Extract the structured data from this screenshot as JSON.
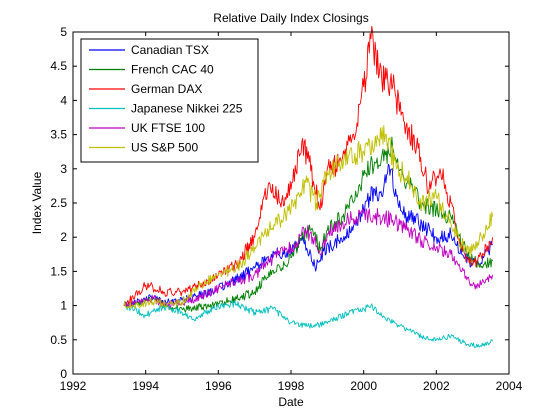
{
  "chart_data": {
    "type": "line",
    "title": "Relative Daily Index Closings",
    "xlabel": "Date",
    "ylabel": "Index Value",
    "xlim": [
      1992,
      2004
    ],
    "ylim": [
      0,
      5
    ],
    "xticks": [
      1992,
      1994,
      1996,
      1998,
      2000,
      2002,
      2004
    ],
    "yticks": [
      0,
      0.5,
      1,
      1.5,
      2,
      2.5,
      3,
      3.5,
      4,
      4.5,
      5
    ],
    "xtick_labels": [
      "1992",
      "1994",
      "1996",
      "1998",
      "2000",
      "2002",
      "2004"
    ],
    "ytick_labels": [
      "0",
      "0.5",
      "1",
      "1.5",
      "2",
      "2.5",
      "3",
      "3.5",
      "4",
      "4.5",
      "5"
    ],
    "grid": false,
    "legend_position": "top-left",
    "series": [
      {
        "name": "Canadian TSX",
        "color": "#0000ff",
        "x": [
          1993.4,
          1993.8,
          1994.2,
          1994.6,
          1995.0,
          1995.5,
          1996.0,
          1996.5,
          1997.0,
          1997.3,
          1997.6,
          1998.0,
          1998.3,
          1998.5,
          1998.7,
          1998.9,
          1999.3,
          1999.7,
          2000.0,
          2000.3,
          2000.5,
          2000.7,
          2000.9,
          2001.2,
          2001.6,
          2002.0,
          2002.4,
          2002.7,
          2003.0,
          2003.3,
          2003.55
        ],
        "y": [
          1.0,
          1.08,
          1.12,
          1.05,
          1.08,
          1.15,
          1.25,
          1.38,
          1.55,
          1.65,
          1.75,
          1.8,
          1.95,
          1.75,
          1.55,
          1.8,
          1.95,
          2.1,
          2.4,
          2.7,
          2.6,
          3.05,
          2.6,
          2.3,
          2.2,
          2.0,
          2.05,
          1.75,
          1.6,
          1.7,
          1.9
        ]
      },
      {
        "name": "French CAC 40",
        "color": "#008000",
        "x": [
          1993.4,
          1993.8,
          1994.2,
          1994.6,
          1995.0,
          1995.5,
          1996.0,
          1996.5,
          1997.0,
          1997.3,
          1997.6,
          1998.0,
          1998.3,
          1998.6,
          1998.8,
          1999.0,
          1999.4,
          1999.8,
          2000.0,
          2000.3,
          2000.6,
          2000.8,
          2001.2,
          2001.6,
          2002.0,
          2002.4,
          2002.7,
          2003.0,
          2003.3,
          2003.55
        ],
        "y": [
          1.0,
          1.05,
          1.1,
          0.98,
          0.95,
          0.98,
          1.02,
          1.1,
          1.2,
          1.4,
          1.5,
          1.7,
          2.0,
          2.1,
          1.8,
          2.1,
          2.3,
          2.6,
          2.9,
          3.1,
          3.2,
          3.3,
          2.8,
          2.5,
          2.4,
          2.3,
          1.9,
          1.65,
          1.6,
          1.65
        ]
      },
      {
        "name": "German DAX",
        "color": "#ff0000",
        "x": [
          1993.4,
          1993.8,
          1994.0,
          1994.5,
          1995.0,
          1995.5,
          1996.0,
          1996.5,
          1997.0,
          1997.2,
          1997.4,
          1997.7,
          1998.0,
          1998.3,
          1998.5,
          1998.8,
          1999.0,
          1999.4,
          1999.7,
          2000.0,
          2000.2,
          2000.5,
          2000.8,
          2001.1,
          2001.5,
          2001.8,
          2002.1,
          2002.4,
          2002.7,
          2003.0,
          2003.3,
          2003.55
        ],
        "y": [
          1.0,
          1.2,
          1.3,
          1.2,
          1.2,
          1.3,
          1.45,
          1.6,
          2.0,
          2.4,
          2.8,
          2.5,
          2.7,
          3.4,
          3.1,
          2.4,
          3.0,
          3.1,
          3.5,
          4.2,
          4.9,
          4.3,
          4.2,
          3.7,
          3.3,
          2.7,
          3.0,
          2.5,
          1.8,
          1.6,
          1.75,
          2.0
        ]
      },
      {
        "name": "Japanese Nikkei 225",
        "color": "#00bfbf",
        "x": [
          1993.4,
          1993.7,
          1994.0,
          1994.3,
          1994.6,
          1995.0,
          1995.3,
          1995.6,
          1996.0,
          1996.5,
          1997.0,
          1997.5,
          1998.0,
          1998.5,
          1998.8,
          1999.2,
          1999.6,
          2000.0,
          2000.2,
          2000.5,
          2000.8,
          2001.2,
          2001.6,
          2002.0,
          2002.4,
          2002.8,
          2003.2,
          2003.55
        ],
        "y": [
          1.0,
          0.95,
          0.85,
          0.95,
          0.98,
          0.9,
          0.8,
          0.88,
          1.0,
          1.02,
          0.9,
          0.95,
          0.75,
          0.7,
          0.72,
          0.8,
          0.9,
          0.95,
          1.0,
          0.85,
          0.75,
          0.65,
          0.55,
          0.5,
          0.55,
          0.45,
          0.4,
          0.48
        ]
      },
      {
        "name": "UK FTSE 100",
        "color": "#bf00bf",
        "x": [
          1993.4,
          1993.8,
          1994.2,
          1994.6,
          1995.0,
          1995.5,
          1996.0,
          1996.5,
          1997.0,
          1997.4,
          1997.8,
          1998.0,
          1998.4,
          1998.6,
          1998.8,
          1999.0,
          1999.4,
          1999.8,
          2000.0,
          2000.4,
          2000.8,
          2001.2,
          2001.6,
          2002.0,
          2002.4,
          2002.7,
          2003.0,
          2003.3,
          2003.55
        ],
        "y": [
          1.0,
          1.05,
          1.1,
          1.0,
          1.05,
          1.12,
          1.25,
          1.35,
          1.45,
          1.65,
          1.8,
          1.85,
          2.1,
          2.0,
          1.75,
          2.05,
          2.2,
          2.3,
          2.35,
          2.3,
          2.25,
          2.1,
          1.95,
          1.85,
          1.75,
          1.5,
          1.3,
          1.35,
          1.45
        ]
      },
      {
        "name": "US S&P 500",
        "color": "#bfbf00",
        "x": [
          1993.4,
          1993.8,
          1994.2,
          1994.6,
          1995.0,
          1995.5,
          1996.0,
          1996.5,
          1997.0,
          1997.4,
          1997.8,
          1998.0,
          1998.4,
          1998.7,
          1998.9,
          1999.2,
          1999.6,
          2000.0,
          2000.3,
          2000.6,
          2000.9,
          2001.2,
          2001.6,
          2002.0,
          2002.4,
          2002.7,
          2003.0,
          2003.3,
          2003.55
        ],
        "y": [
          1.0,
          1.02,
          1.05,
          1.03,
          1.05,
          1.3,
          1.45,
          1.55,
          1.85,
          2.1,
          2.3,
          2.4,
          2.8,
          2.5,
          2.8,
          3.05,
          3.2,
          3.25,
          3.35,
          3.5,
          3.0,
          2.9,
          2.5,
          2.6,
          2.2,
          1.9,
          1.8,
          2.05,
          2.3
        ]
      }
    ]
  }
}
